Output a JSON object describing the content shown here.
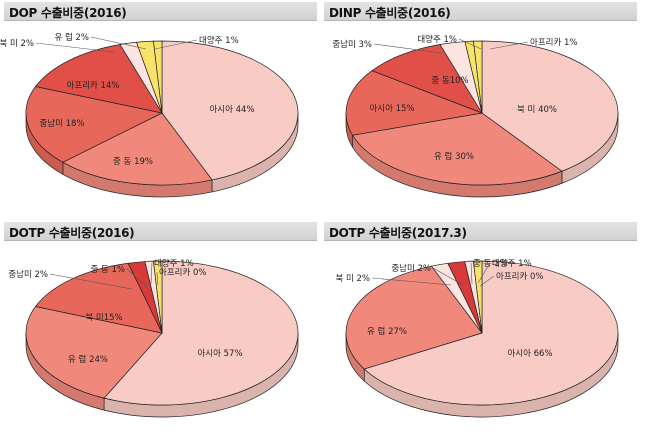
{
  "colors": {
    "highlight": "#f7e36a",
    "light": "#f9cbc5",
    "pale": "#fde4e1",
    "mid": "#f0897c",
    "strong": "#e8675b",
    "deep": "#e04f48",
    "red": "#d83a3a",
    "outline": "#222222",
    "leader": "#555555"
  },
  "chart_data": [
    {
      "type": "pie",
      "title": "DOP 수출비중(2016)",
      "categories": [
        "아시아",
        "중 동",
        "중남미",
        "아프리카",
        "북 미",
        "유 럽",
        "대양주"
      ],
      "values": [
        44,
        19,
        18,
        14,
        2,
        2,
        1
      ],
      "labels": [
        "아시아 44%",
        "중 동 19%",
        "중남미 18%",
        "아프리카 14%",
        "북 미 2%",
        "유 럽 2%",
        "대양주 1%"
      ],
      "colors": [
        "light",
        "mid",
        "strong",
        "deep",
        "pale",
        "highlight",
        "highlight"
      ]
    },
    {
      "type": "pie",
      "title": "DINP 수출비중(2016)",
      "categories": [
        "북 미",
        "유 럽",
        "아시아",
        "중 동",
        "중남미",
        "대양주",
        "아프리카"
      ],
      "values": [
        40,
        30,
        15,
        10,
        3,
        1,
        1
      ],
      "labels": [
        "북 미 40%",
        "유 럽 30%",
        "아시아 15%",
        "중 동10%",
        "중남미 3%",
        "대양주 1%",
        "아프리카 1%"
      ],
      "colors": [
        "light",
        "mid",
        "strong",
        "deep",
        "pale",
        "highlight",
        "highlight"
      ]
    },
    {
      "type": "pie",
      "title": "DOTP 수출비중(2016)",
      "categories": [
        "아시아",
        "유 럽",
        "북 미",
        "중남미",
        "중 동",
        "대양주",
        "아프리카"
      ],
      "values": [
        57,
        24,
        15,
        2,
        1,
        1,
        0
      ],
      "labels": [
        "아시아 57%",
        "유 럽 24%",
        "북 미15%",
        "중남미 2%",
        "중 동 1%",
        "대양주 1%",
        "아프리카 0%"
      ],
      "colors": [
        "light",
        "mid",
        "strong",
        "red",
        "pale",
        "highlight",
        "highlight"
      ]
    },
    {
      "type": "pie",
      "title": "DOTP 수출비중(2017.3)",
      "categories": [
        "아시아",
        "유 럽",
        "북 미",
        "중남미",
        "중 동",
        "대양주",
        "아프리카"
      ],
      "values": [
        66,
        27,
        2,
        2,
        1,
        1,
        0
      ],
      "labels": [
        "아시아 66%",
        "유 럽 27%",
        "북 미 2%",
        "중남미 2%",
        "중 동 1%",
        "대양주 1%",
        "아프리카 0%"
      ],
      "colors": [
        "light",
        "mid",
        "pale",
        "red",
        "pale",
        "highlight",
        "highlight"
      ]
    }
  ]
}
